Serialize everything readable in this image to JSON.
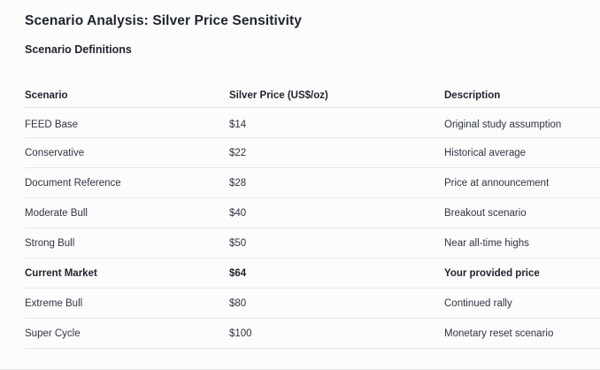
{
  "page": {
    "title": "Scenario Analysis: Silver Price Sensitivity",
    "section_heading": "Scenario Definitions"
  },
  "table": {
    "columns": [
      "Scenario",
      "Silver Price (US$/oz)",
      "Description"
    ],
    "rows": [
      {
        "scenario": "FEED Base",
        "price": "$14",
        "description": "Original study assumption",
        "bold": false
      },
      {
        "scenario": "Conservative",
        "price": "$22",
        "description": "Historical average",
        "bold": false
      },
      {
        "scenario": "Document Reference",
        "price": "$28",
        "description": "Price at announcement",
        "bold": false
      },
      {
        "scenario": "Moderate Bull",
        "price": "$40",
        "description": "Breakout scenario",
        "bold": false
      },
      {
        "scenario": "Strong Bull",
        "price": "$50",
        "description": "Near all-time highs",
        "bold": false
      },
      {
        "scenario": "Current Market",
        "price": "$64",
        "description": "Your provided price",
        "bold": true
      },
      {
        "scenario": "Extreme Bull",
        "price": "$80",
        "description": "Continued rally",
        "bold": false
      },
      {
        "scenario": "Super Cycle",
        "price": "$100",
        "description": "Monetary reset scenario",
        "bold": false
      }
    ]
  },
  "colors": {
    "background": "#fcfcfd",
    "heading": "#1e232d",
    "text": "#2f3440",
    "header_border": "#dcdce2",
    "row_border": "#e7e7ec"
  }
}
